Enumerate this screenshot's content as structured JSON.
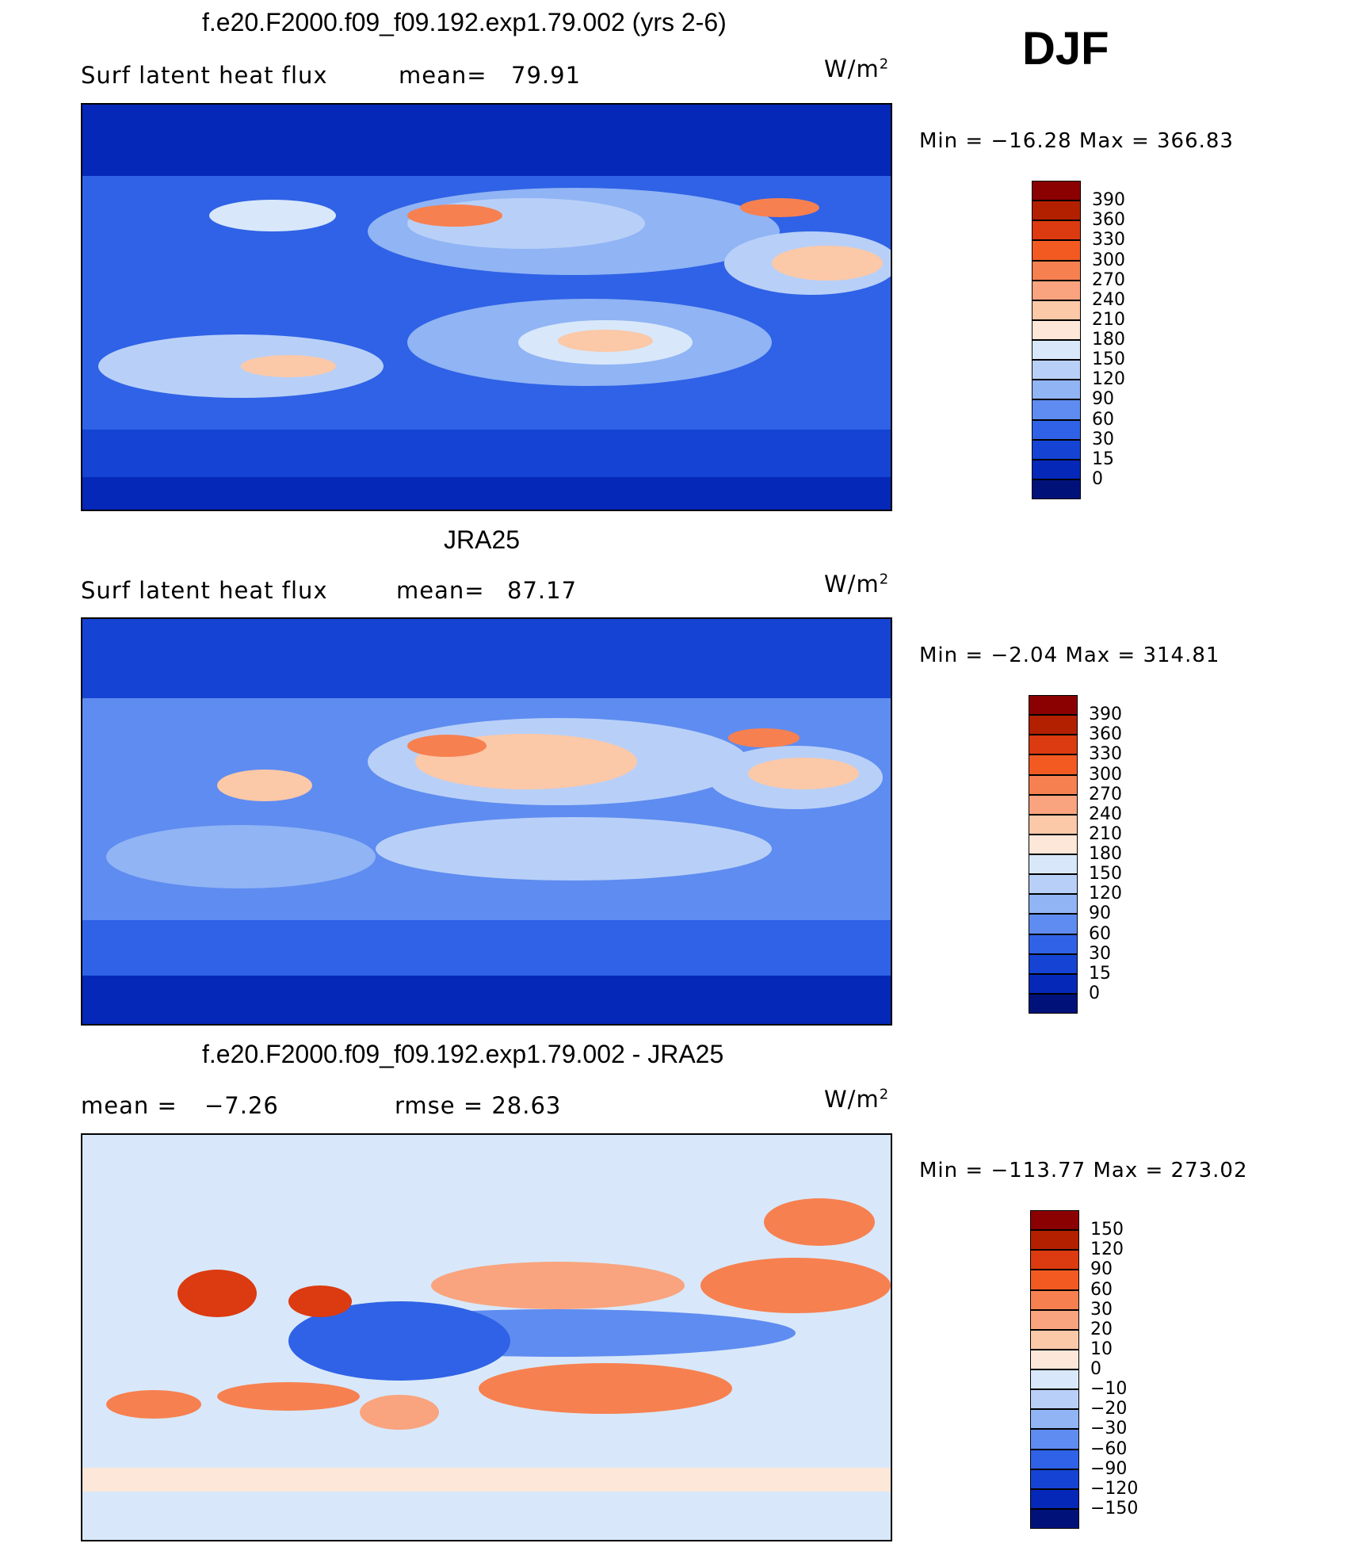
{
  "header": {
    "season": "DJF"
  },
  "panels": [
    {
      "title": "f.e20.F2000.f09_f09.192.exp1.79.002 (yrs 2-6)",
      "left_label": "Surf latent heat flux",
      "mean_label": "mean=",
      "mean_value": "79.91",
      "units": "W/m",
      "units_exp": "2",
      "minmax": "Min = −16.28 Max = 366.83",
      "colorbar": {
        "levels": [
          "390",
          "360",
          "330",
          "300",
          "270",
          "240",
          "210",
          "180",
          "150",
          "120",
          "90",
          "60",
          "30",
          "15",
          "0"
        ],
        "colors": [
          "#8b0000",
          "#b22000",
          "#dc3a10",
          "#f25a22",
          "#f78050",
          "#f9a47e",
          "#fbc8a8",
          "#fde7d8",
          "#d8e8fa",
          "#b8d0f8",
          "#90b4f4",
          "#5f8cf0",
          "#2f62e6",
          "#1544d4",
          "#0628b8",
          "#00127a"
        ]
      }
    },
    {
      "title": "JRA25",
      "left_label": "Surf latent heat flux",
      "mean_label": "mean=",
      "mean_value": "87.17",
      "units": "W/m",
      "units_exp": "2",
      "minmax": "Min = −2.04 Max = 314.81",
      "colorbar": {
        "levels": [
          "390",
          "360",
          "330",
          "300",
          "270",
          "240",
          "210",
          "180",
          "150",
          "120",
          "90",
          "60",
          "30",
          "15",
          "0"
        ],
        "colors": [
          "#8b0000",
          "#b22000",
          "#dc3a10",
          "#f25a22",
          "#f78050",
          "#f9a47e",
          "#fbc8a8",
          "#fde7d8",
          "#d8e8fa",
          "#b8d0f8",
          "#90b4f4",
          "#5f8cf0",
          "#2f62e6",
          "#1544d4",
          "#0628b8",
          "#00127a"
        ]
      }
    },
    {
      "title": "f.e20.F2000.f09_f09.192.exp1.79.002 - JRA25",
      "left_label": "mean =",
      "mean_label": "−7.26",
      "mean_value": "rmse =   28.63",
      "units": "W/m",
      "units_exp": "2",
      "minmax": "Min = −113.77 Max = 273.02",
      "colorbar": {
        "levels": [
          "150",
          "120",
          "90",
          "60",
          "30",
          "20",
          "10",
          "0",
          "−10",
          "−20",
          "−30",
          "−60",
          "−90",
          "−120",
          "−150"
        ],
        "colors": [
          "#8b0000",
          "#b22000",
          "#dc3a10",
          "#f25a22",
          "#f78050",
          "#f9a47e",
          "#fbc8a8",
          "#fde7d8",
          "#d8e8fa",
          "#b8d0f8",
          "#90b4f4",
          "#5f8cf0",
          "#2f62e6",
          "#1544d4",
          "#0628b8",
          "#00127a"
        ]
      }
    }
  ],
  "chart_data": [
    {
      "type": "heatmap",
      "title": "f.e20.F2000.f09_f09.192.exp1.79.002 (yrs 2-6)",
      "variable": "Surf latent heat flux",
      "units": "W/m2",
      "mean": 79.91,
      "min": -16.28,
      "max": 366.83
    },
    {
      "type": "heatmap",
      "title": "JRA25",
      "variable": "Surf latent heat flux",
      "units": "W/m2",
      "mean": 87.17,
      "min": -2.04,
      "max": 314.81
    },
    {
      "type": "heatmap",
      "title": "f.e20.F2000.f09_f09.192.exp1.79.002 - JRA25",
      "units": "W/m2",
      "mean": -7.26,
      "rmse": 28.63,
      "min": -113.77,
      "max": 273.02
    }
  ]
}
